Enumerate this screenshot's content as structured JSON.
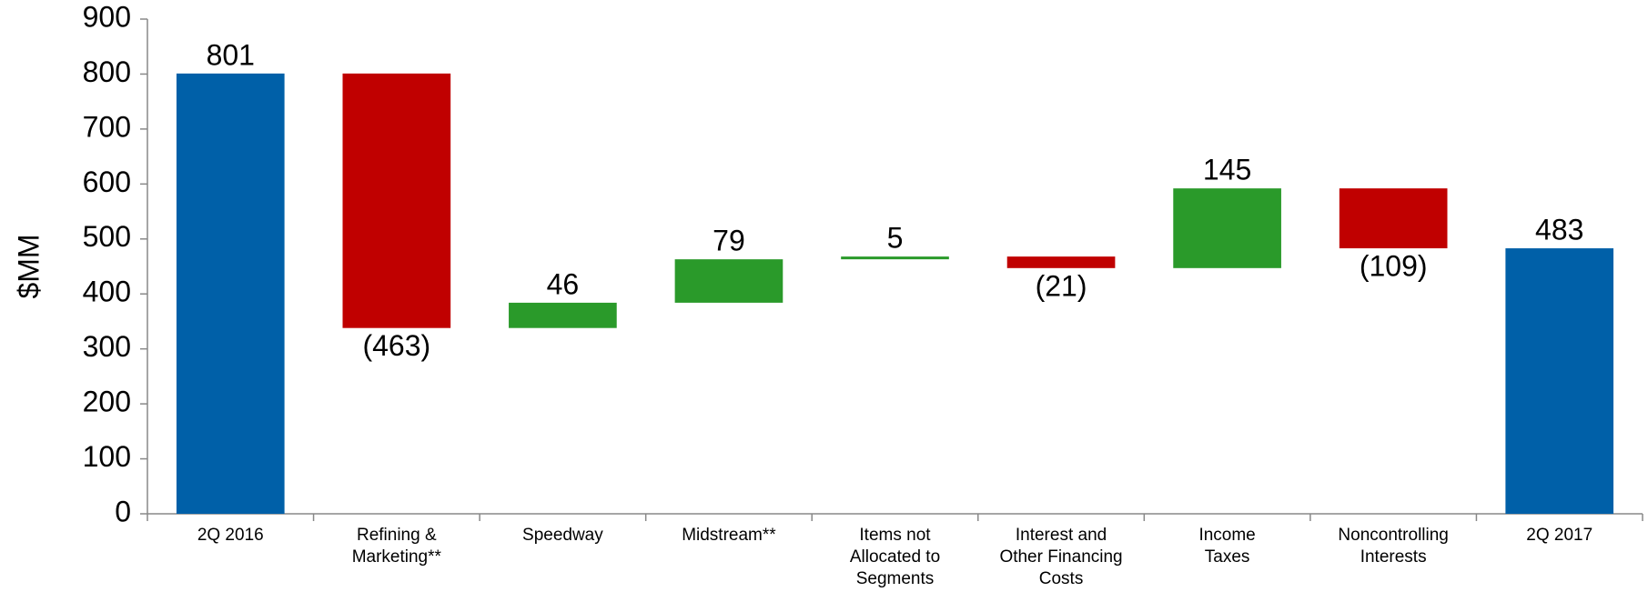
{
  "chart_data": {
    "type": "waterfall",
    "y_label": "$MM",
    "categories": [
      "2Q 2016",
      "Refining &\nMarketing**",
      "Speedway",
      "Midstream**",
      "Items not\nAllocated to\nSegments",
      "Interest and\nOther Financing\nCosts",
      "Income\nTaxes",
      "Noncontrolling\nInterests",
      "2Q 2017"
    ],
    "values": [
      801,
      -463,
      46,
      79,
      5,
      -21,
      145,
      -109,
      483
    ],
    "value_labels": [
      "801",
      "(463)",
      "46",
      "79",
      "5",
      "(21)",
      "145",
      "(109)",
      "483"
    ],
    "colors": {
      "total": "#0060a8",
      "increase": "#2a9a2a",
      "decrease": "#c00000"
    },
    "ylim": [
      0,
      900
    ],
    "yticks": [
      0,
      100,
      200,
      300,
      400,
      500,
      600,
      700,
      800,
      900
    ]
  }
}
